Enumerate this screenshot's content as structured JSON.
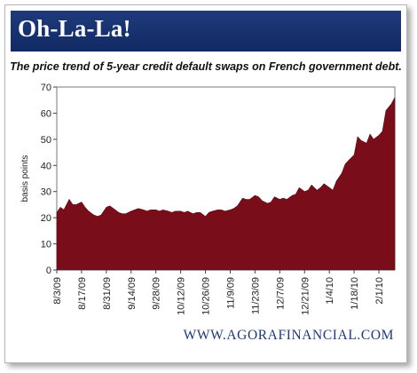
{
  "banner": {
    "title": "Oh-La-La!"
  },
  "footer": {
    "source": "WWW.AGORAFINANCIAL.COM"
  },
  "colors": {
    "banner": "#1a3575",
    "area_fill": "#7a0d1a",
    "footer_text": "#1d3a78"
  },
  "chart_data": {
    "type": "area",
    "title": "The price trend of 5-year credit default swaps on  French government debt.",
    "xlabel": "",
    "ylabel": "basis points",
    "ylim": [
      0,
      70
    ],
    "yticks": [
      0,
      10,
      20,
      30,
      40,
      50,
      60,
      70
    ],
    "x_tick_labels": [
      "8/3/09",
      "8/17/09",
      "8/31/09",
      "9/14/09",
      "9/28/09",
      "10/12/09",
      "10/26/09",
      "11/9/09",
      "11/23/09",
      "12/7/09",
      "12/21/09",
      "1/4/10",
      "1/18/10",
      "2/1/10"
    ],
    "x": [
      "8/3/09",
      "8/5/09",
      "8/7/09",
      "8/10/09",
      "8/12/09",
      "8/14/09",
      "8/17/09",
      "8/19/09",
      "8/21/09",
      "8/24/09",
      "8/26/09",
      "8/28/09",
      "8/31/09",
      "9/2/09",
      "9/4/09",
      "9/7/09",
      "9/9/09",
      "9/11/09",
      "9/14/09",
      "9/16/09",
      "9/18/09",
      "9/21/09",
      "9/23/09",
      "9/25/09",
      "9/28/09",
      "9/30/09",
      "10/2/09",
      "10/5/09",
      "10/7/09",
      "10/9/09",
      "10/12/09",
      "10/14/09",
      "10/16/09",
      "10/19/09",
      "10/21/09",
      "10/23/09",
      "10/26/09",
      "10/28/09",
      "10/30/09",
      "11/2/09",
      "11/4/09",
      "11/6/09",
      "11/9/09",
      "11/11/09",
      "11/13/09",
      "11/16/09",
      "11/18/09",
      "11/20/09",
      "11/23/09",
      "11/25/09",
      "11/27/09",
      "11/30/09",
      "12/2/09",
      "12/4/09",
      "12/7/09",
      "12/9/09",
      "12/11/09",
      "12/14/09",
      "12/16/09",
      "12/18/09",
      "12/21/09",
      "12/23/09",
      "12/25/09",
      "12/28/09",
      "12/30/09",
      "1/1/10",
      "1/4/10",
      "1/6/10",
      "1/8/10",
      "1/11/10",
      "1/13/10",
      "1/15/10",
      "1/18/10",
      "1/20/10",
      "1/22/10",
      "1/25/10",
      "1/27/10",
      "1/29/10",
      "2/1/10",
      "2/3/10",
      "2/5/10",
      "2/8/10",
      "2/10/10"
    ],
    "series": [
      {
        "values": [
          22,
          24,
          23,
          27,
          25,
          25,
          26,
          24,
          22.5,
          21,
          20.5,
          21,
          24,
          24.5,
          23.5,
          22,
          21.5,
          21.5,
          22.5,
          23,
          23.5,
          23,
          22.5,
          23,
          23,
          22.5,
          23,
          22.5,
          22,
          22.5,
          22.5,
          22,
          22.5,
          21.5,
          22,
          22,
          20.5,
          22,
          22.5,
          23,
          23,
          22.5,
          23,
          23.5,
          24.5,
          27.5,
          27,
          27,
          28.5,
          28,
          26.5,
          25.5,
          26,
          28,
          27,
          27.5,
          27,
          28.5,
          29,
          31.5,
          30,
          30.5,
          32.5,
          30.5,
          31.5,
          33,
          31.5,
          30.5,
          34,
          37,
          40.5,
          42,
          44,
          51,
          49.5,
          48.5,
          52,
          50,
          51.5,
          53,
          61,
          63.5,
          66
        ]
      }
    ]
  }
}
